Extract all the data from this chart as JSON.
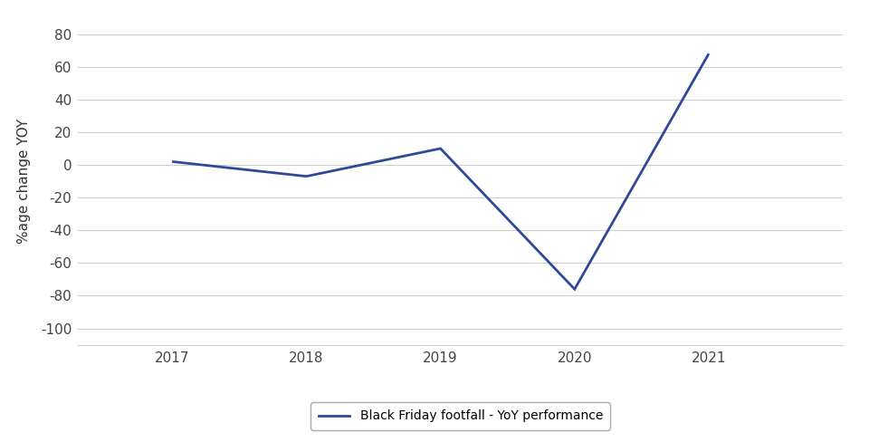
{
  "years": [
    2017,
    2018,
    2019,
    2020,
    2021
  ],
  "values": [
    2,
    -7,
    10,
    -76,
    68
  ],
  "line_color": "#2E4998",
  "line_width": 2.0,
  "ylabel": "%age change YOY",
  "ylim": [
    -110,
    90
  ],
  "yticks": [
    -100,
    -80,
    -60,
    -40,
    -20,
    0,
    20,
    40,
    60,
    80
  ],
  "xlim": [
    2016.3,
    2022.0
  ],
  "legend_label": "Black Friday footfall - YoY performance",
  "background_color": "#ffffff",
  "grid_color": "#d0d0d0",
  "tick_label_color": "#444444",
  "axis_label_color": "#333333",
  "tick_fontsize": 11,
  "ylabel_fontsize": 11,
  "legend_fontsize": 10
}
